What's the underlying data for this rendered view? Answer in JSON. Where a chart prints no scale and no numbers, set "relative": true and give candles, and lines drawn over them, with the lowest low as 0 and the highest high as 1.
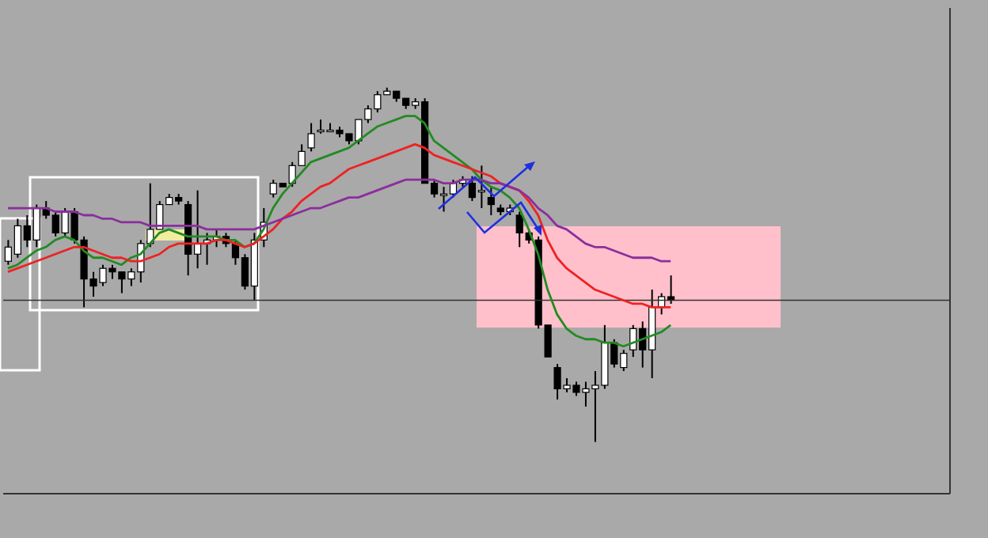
{
  "chart_data": {
    "type": "candlestick",
    "relative": true,
    "categories": [
      null,
      null,
      null,
      null,
      null,
      null,
      null,
      null,
      null,
      null,
      null,
      null,
      null,
      null,
      null,
      null,
      null,
      null,
      null,
      null,
      null,
      null,
      null,
      null,
      null,
      null,
      null,
      null,
      null,
      null,
      null,
      null,
      null,
      null,
      null,
      null,
      null,
      null,
      null,
      null,
      null,
      null,
      null,
      null,
      null,
      null,
      null,
      null,
      null,
      null,
      null,
      null,
      null,
      null,
      null,
      null,
      null,
      null,
      null,
      null,
      null,
      null,
      null,
      null,
      null,
      null,
      null,
      null,
      null,
      null,
      null,
      null,
      null,
      null,
      null,
      null,
      null,
      null,
      null,
      null,
      null,
      null,
      null,
      null,
      null,
      null,
      null,
      null,
      null,
      null,
      null,
      null,
      null,
      null,
      null,
      null,
      null,
      null,
      null,
      null
    ],
    "ohlc": [
      [
        0.51,
        0.57,
        0.5,
        0.55
      ],
      [
        0.53,
        0.63,
        0.52,
        0.61
      ],
      [
        0.61,
        0.64,
        0.55,
        0.57
      ],
      [
        0.57,
        0.67,
        0.55,
        0.66
      ],
      [
        0.66,
        0.68,
        0.63,
        0.64
      ],
      [
        0.64,
        0.65,
        0.58,
        0.59
      ],
      [
        0.59,
        0.66,
        0.58,
        0.65
      ],
      [
        0.65,
        0.66,
        0.56,
        0.57
      ],
      [
        0.57,
        0.58,
        0.38,
        0.46
      ],
      [
        0.46,
        0.48,
        0.41,
        0.44
      ],
      [
        0.45,
        0.5,
        0.44,
        0.49
      ],
      [
        0.49,
        0.5,
        0.46,
        0.48
      ],
      [
        0.48,
        0.48,
        0.42,
        0.46
      ],
      [
        0.46,
        0.49,
        0.44,
        0.48
      ],
      [
        0.48,
        0.57,
        0.45,
        0.56
      ],
      [
        0.56,
        0.73,
        0.55,
        0.6
      ],
      [
        0.6,
        0.68,
        0.6,
        0.67
      ],
      [
        0.67,
        0.7,
        0.67,
        0.69
      ],
      [
        0.69,
        0.7,
        0.67,
        0.68
      ],
      [
        0.67,
        0.68,
        0.47,
        0.53
      ],
      [
        0.53,
        0.71,
        0.49,
        0.56
      ],
      [
        0.56,
        0.59,
        0.5,
        0.57
      ],
      [
        0.57,
        0.6,
        0.55,
        0.58
      ],
      [
        0.58,
        0.59,
        0.55,
        0.56
      ],
      [
        0.56,
        0.57,
        0.5,
        0.52
      ],
      [
        0.52,
        0.53,
        0.43,
        0.44
      ],
      [
        0.44,
        0.59,
        0.4,
        0.57
      ],
      [
        0.57,
        0.66,
        0.55,
        0.62
      ],
      [
        0.7,
        0.74,
        0.69,
        0.73
      ],
      [
        0.73,
        0.73,
        0.72,
        0.72
      ],
      [
        0.73,
        0.79,
        0.72,
        0.78
      ],
      [
        0.78,
        0.84,
        0.78,
        0.82
      ],
      [
        0.83,
        0.9,
        0.82,
        0.87
      ],
      [
        0.88,
        0.91,
        0.87,
        0.88
      ],
      [
        0.88,
        0.9,
        0.88,
        0.88
      ],
      [
        0.88,
        0.89,
        0.86,
        0.87
      ],
      [
        0.87,
        0.87,
        0.84,
        0.85
      ],
      [
        0.85,
        0.91,
        0.84,
        0.91
      ],
      [
        0.91,
        0.95,
        0.9,
        0.94
      ],
      [
        0.94,
        0.99,
        0.93,
        0.98
      ],
      [
        0.98,
        1.0,
        0.98,
        0.99
      ],
      [
        0.99,
        0.99,
        0.96,
        0.97
      ],
      [
        0.97,
        0.97,
        0.94,
        0.95
      ],
      [
        0.95,
        0.97,
        0.94,
        0.96
      ],
      [
        0.96,
        0.97,
        0.73,
        0.73
      ],
      [
        0.73,
        0.74,
        0.69,
        0.7
      ],
      [
        0.7,
        0.72,
        0.65,
        0.7
      ],
      [
        0.7,
        0.74,
        0.69,
        0.73
      ],
      [
        0.73,
        0.75,
        0.72,
        0.74
      ],
      [
        0.73,
        0.75,
        0.68,
        0.69
      ],
      [
        0.71,
        0.78,
        0.66,
        0.71
      ],
      [
        0.69,
        0.72,
        0.64,
        0.67
      ],
      [
        0.66,
        0.67,
        0.64,
        0.65
      ],
      [
        0.65,
        0.67,
        0.64,
        0.66
      ],
      [
        0.64,
        0.65,
        0.55,
        0.59
      ],
      [
        0.59,
        0.6,
        0.56,
        0.57
      ],
      [
        0.57,
        0.58,
        0.32,
        0.33
      ],
      [
        0.33,
        0.33,
        0.24,
        0.24
      ],
      [
        0.21,
        0.22,
        0.12,
        0.15
      ],
      [
        0.15,
        0.18,
        0.14,
        0.16
      ],
      [
        0.16,
        0.17,
        0.13,
        0.14
      ],
      [
        0.14,
        0.17,
        0.1,
        0.15
      ],
      [
        0.15,
        0.2,
        0,
        0.16
      ],
      [
        0.16,
        0.33,
        0.15,
        0.28
      ],
      [
        0.28,
        0.29,
        0.21,
        0.22
      ],
      [
        0.21,
        0.26,
        0.2,
        0.25
      ],
      [
        0.26,
        0.33,
        0.24,
        0.32
      ],
      [
        0.32,
        0.34,
        0.21,
        0.26
      ],
      [
        0.26,
        0.43,
        0.18,
        0.38
      ],
      [
        0.38,
        0.42,
        0.36,
        0.41
      ],
      [
        0.41,
        0.47,
        0.39,
        0.4
      ],
      null,
      null,
      null,
      null,
      null,
      null,
      null,
      null,
      null,
      null,
      null,
      null,
      null,
      null,
      null,
      null,
      null,
      null,
      null,
      null,
      null,
      null,
      null,
      null,
      null,
      null,
      null,
      null,
      null
    ],
    "series": [
      {
        "type": "line",
        "color": "#228b22",
        "values": [
          0.49,
          0.5,
          0.52,
          0.54,
          0.55,
          0.57,
          0.58,
          0.57,
          0.54,
          0.52,
          0.52,
          0.51,
          0.5,
          0.52,
          0.53,
          0.56,
          0.59,
          0.6,
          0.59,
          0.58,
          0.58,
          0.58,
          0.58,
          0.57,
          0.57,
          0.55,
          0.56,
          0.6,
          0.66,
          0.7,
          0.73,
          0.76,
          0.79,
          0.8,
          0.81,
          0.82,
          0.83,
          0.85,
          0.87,
          0.89,
          0.9,
          0.91,
          0.92,
          0.92,
          0.9,
          0.85,
          0.83,
          0.81,
          0.79,
          0.77,
          0.74,
          0.72,
          0.71,
          0.69,
          0.66,
          0.6,
          0.53,
          0.43,
          0.36,
          0.32,
          0.3,
          0.29,
          0.29,
          0.28,
          0.28,
          0.27,
          0.28,
          0.29,
          0.3,
          0.31,
          0.33,
          null,
          null,
          null,
          null,
          null,
          null,
          null,
          null,
          null,
          null,
          null,
          null,
          null,
          null,
          null,
          null,
          null,
          null,
          null,
          null,
          null,
          null,
          null,
          null,
          null,
          null,
          null,
          null,
          null
        ]
      },
      {
        "type": "line",
        "color": "#ee2222",
        "values": [
          0.48,
          0.49,
          0.5,
          0.51,
          0.52,
          0.53,
          0.54,
          0.55,
          0.55,
          0.54,
          0.53,
          0.52,
          0.52,
          0.51,
          0.51,
          0.52,
          0.53,
          0.55,
          0.56,
          0.56,
          0.56,
          0.56,
          0.57,
          0.57,
          0.56,
          0.55,
          0.56,
          0.58,
          0.6,
          0.63,
          0.65,
          0.68,
          0.7,
          0.72,
          0.73,
          0.75,
          0.77,
          0.78,
          0.79,
          0.8,
          0.81,
          0.82,
          0.83,
          0.84,
          0.83,
          0.81,
          0.8,
          0.79,
          0.78,
          0.77,
          0.76,
          0.75,
          0.73,
          0.72,
          0.71,
          0.68,
          0.64,
          0.57,
          0.52,
          0.49,
          0.47,
          0.45,
          0.43,
          0.42,
          0.41,
          0.4,
          0.39,
          0.39,
          0.38,
          0.38,
          0.38,
          null,
          null,
          null,
          null,
          null,
          null,
          null,
          null,
          null,
          null,
          null,
          null,
          null,
          null,
          null,
          null,
          null,
          null,
          null,
          null,
          null,
          null,
          null,
          null,
          null,
          null,
          null,
          null,
          null
        ]
      },
      {
        "type": "line",
        "color": "#8b2e9c",
        "values": [
          0.66,
          0.66,
          0.66,
          0.66,
          0.66,
          0.65,
          0.65,
          0.65,
          0.64,
          0.64,
          0.63,
          0.63,
          0.62,
          0.62,
          0.62,
          0.61,
          0.61,
          0.61,
          0.61,
          0.61,
          0.61,
          0.6,
          0.6,
          0.6,
          0.6,
          0.6,
          0.6,
          0.61,
          0.62,
          0.63,
          0.64,
          0.65,
          0.66,
          0.66,
          0.67,
          0.68,
          0.69,
          0.69,
          0.7,
          0.71,
          0.72,
          0.73,
          0.74,
          0.74,
          0.74,
          0.74,
          0.73,
          0.73,
          0.74,
          0.74,
          0.74,
          0.73,
          0.73,
          0.72,
          0.71,
          0.69,
          0.66,
          0.64,
          0.61,
          0.6,
          0.58,
          0.56,
          0.55,
          0.55,
          0.54,
          0.53,
          0.52,
          0.52,
          0.52,
          0.51,
          0.51,
          null,
          null,
          null,
          null,
          null,
          null,
          null,
          null,
          null,
          null,
          null,
          null,
          null,
          null,
          null,
          null,
          null,
          null,
          null,
          null,
          null,
          null,
          null,
          null,
          null,
          null,
          null,
          null,
          null
        ]
      }
    ],
    "ref_lines": [
      {
        "axis": "y",
        "value": 0.4,
        "color": "#333333"
      }
    ]
  }
}
